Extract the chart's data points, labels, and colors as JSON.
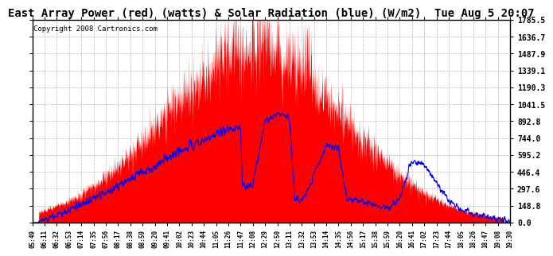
{
  "title": "East Array Power (red) (watts) & Solar Radiation (blue) (W/m2)  Tue Aug 5 20:07",
  "copyright": "Copyright 2008 Cartronics.com",
  "ymin": 0.0,
  "ymax": 1785.5,
  "yticks": [
    0.0,
    148.8,
    297.6,
    446.4,
    595.2,
    744.0,
    892.8,
    1041.5,
    1190.3,
    1339.1,
    1487.9,
    1636.7,
    1785.5
  ],
  "xtick_labels": [
    "05:49",
    "06:11",
    "06:32",
    "06:53",
    "07:14",
    "07:35",
    "07:56",
    "08:17",
    "08:38",
    "08:59",
    "09:20",
    "09:41",
    "10:02",
    "10:23",
    "10:44",
    "11:05",
    "11:26",
    "11:47",
    "12:08",
    "12:29",
    "12:50",
    "13:11",
    "13:32",
    "13:53",
    "14:14",
    "14:35",
    "14:56",
    "15:17",
    "15:38",
    "15:59",
    "16:20",
    "16:41",
    "17:02",
    "17:23",
    "17:44",
    "18:05",
    "18:26",
    "18:47",
    "19:08",
    "19:30"
  ],
  "bg_color": "#ffffff",
  "plot_bg_color": "#ffffff",
  "red_fill_color": "#ff0000",
  "blue_line_color": "#0000ff",
  "grid_color": "#bbbbbb",
  "title_color": "#000000",
  "title_fontsize": 10,
  "copyright_fontsize": 6.5
}
